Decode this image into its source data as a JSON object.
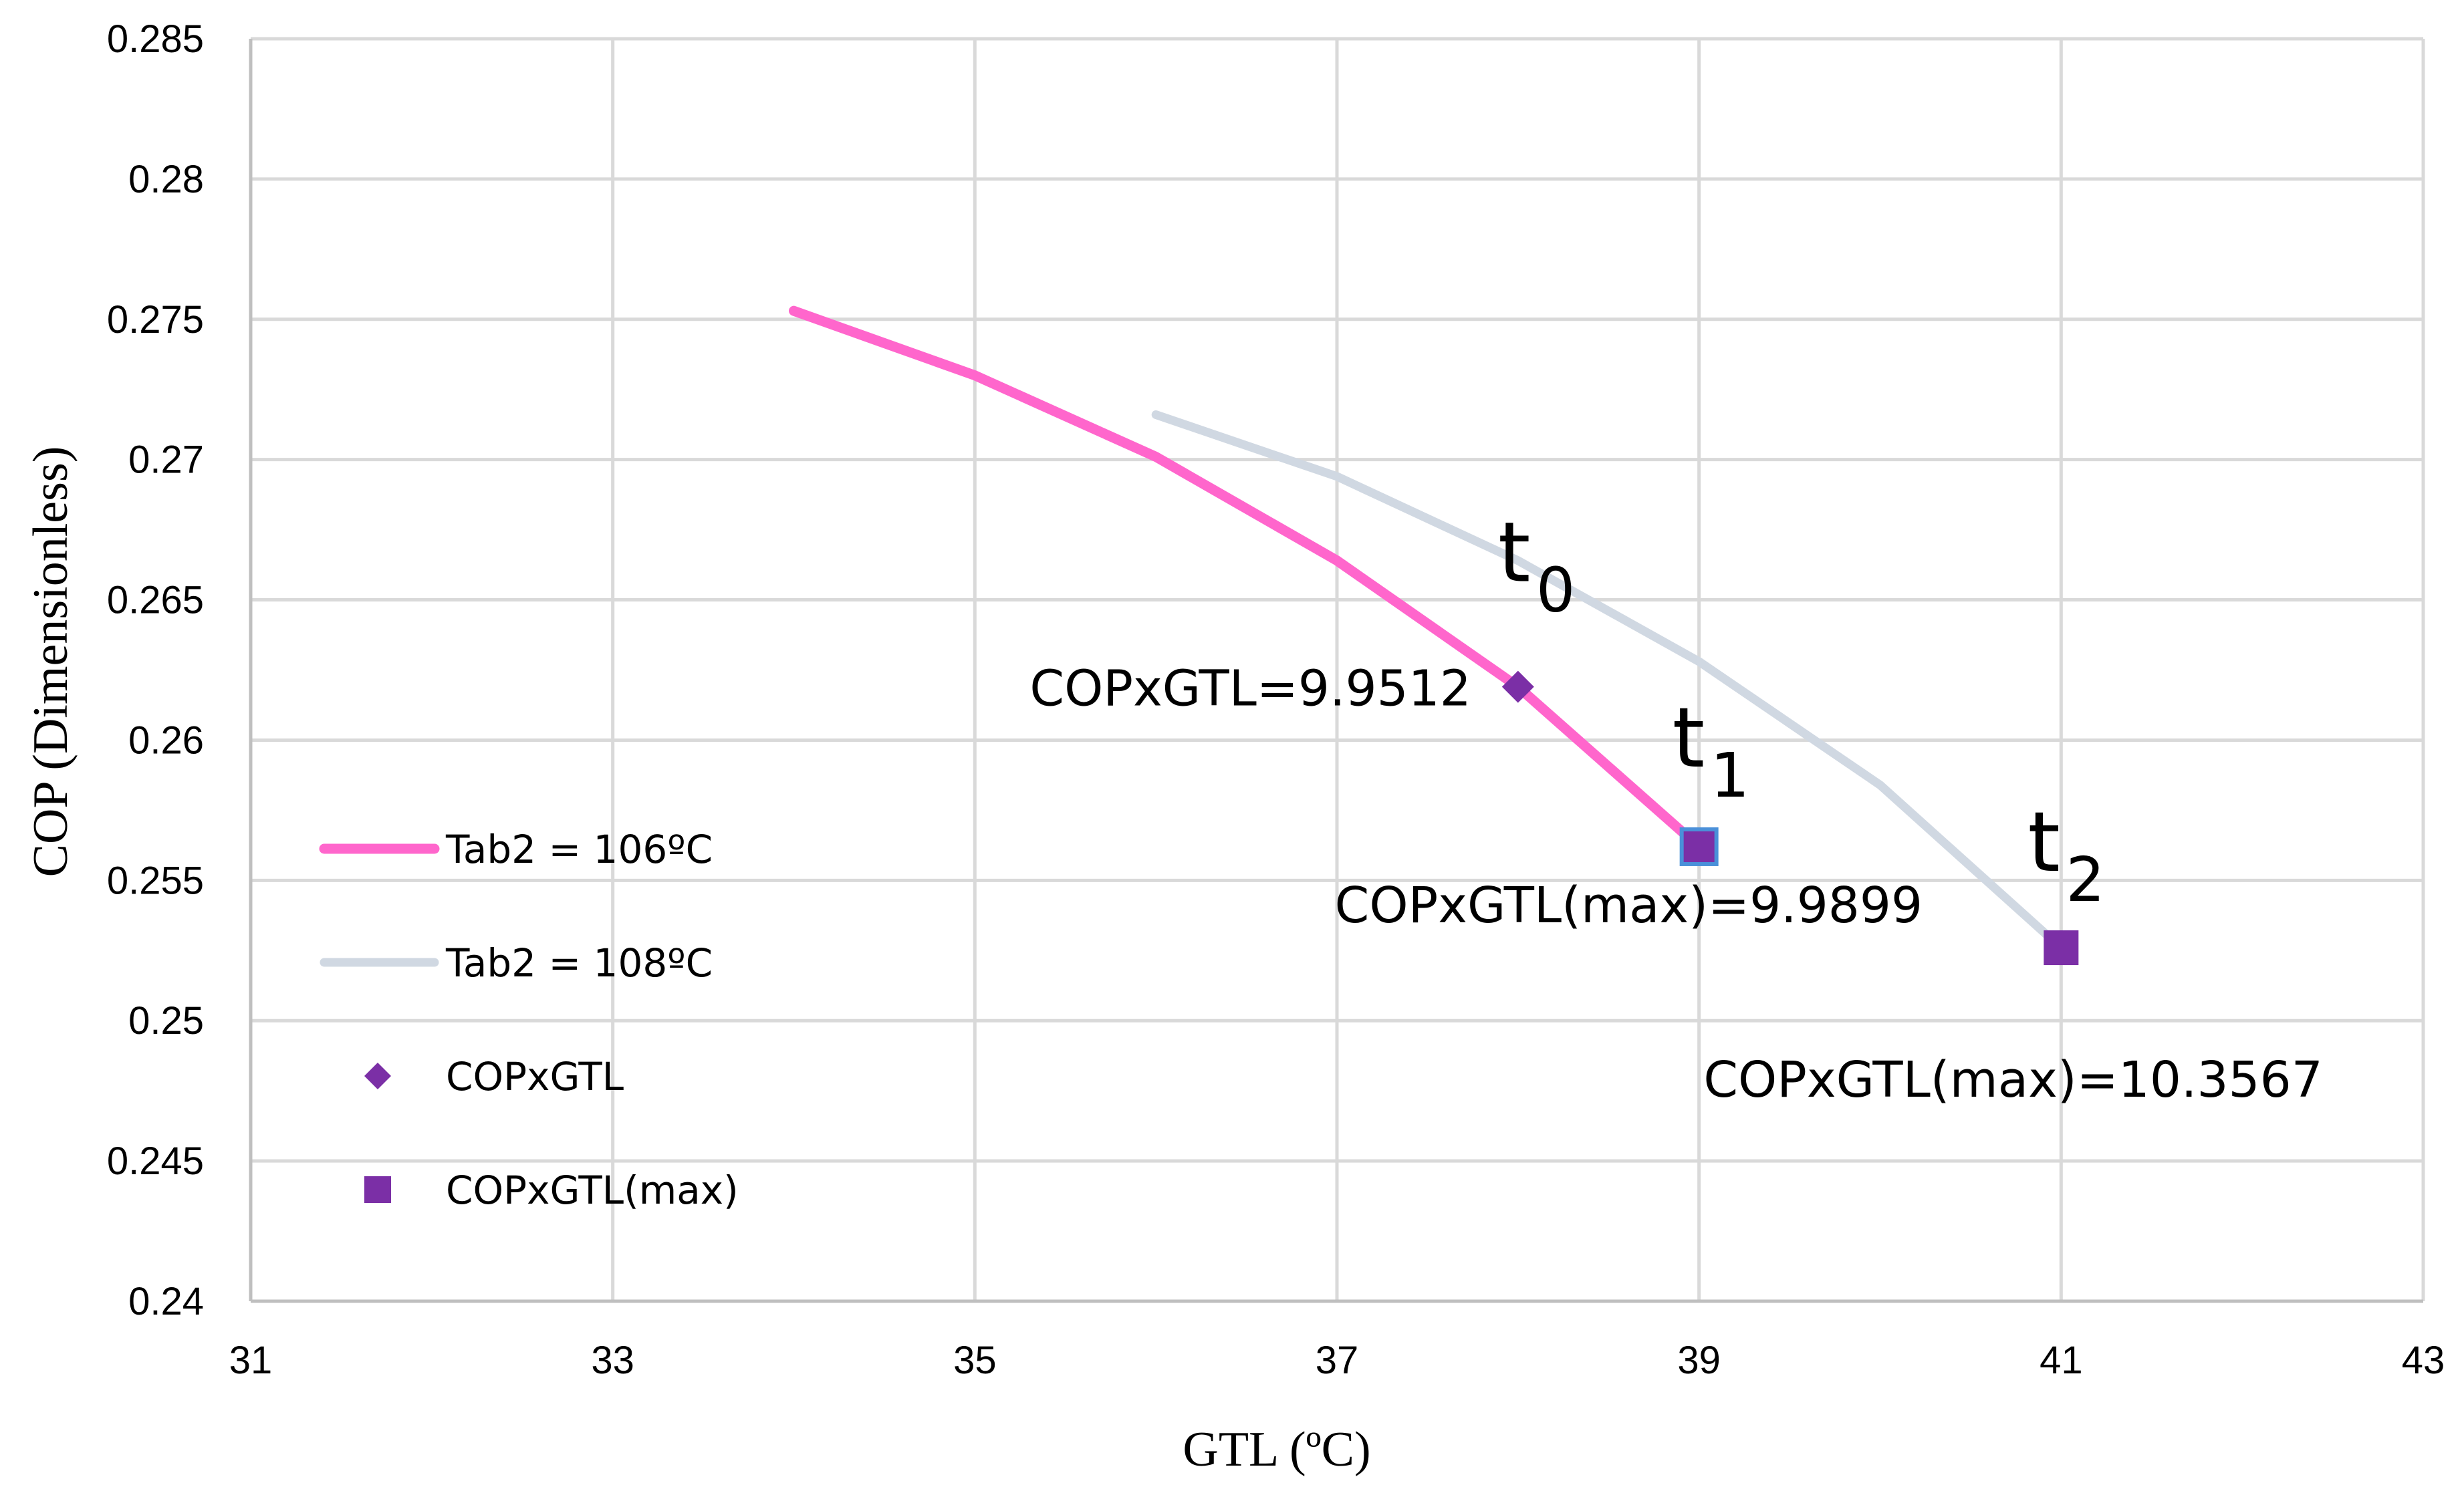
{
  "chart_data": {
    "type": "line",
    "xlabel": "GTL (ºC)",
    "ylabel": "COP (Dimensionless)",
    "xlim": [
      31,
      43
    ],
    "ylim": [
      0.24,
      0.285
    ],
    "x_ticks": [
      "31",
      "33",
      "35",
      "37",
      "39",
      "41",
      "43"
    ],
    "y_ticks": [
      "0.24",
      "0.245",
      "0.25",
      "0.255",
      "0.26",
      "0.265",
      "0.27",
      "0.275",
      "0.28",
      "0.285"
    ],
    "grid": true,
    "legend_position": "left",
    "series": [
      {
        "name": "Tab2 = 106ºC",
        "kind": "line",
        "color": "#ff66cc",
        "x": [
          34,
          35,
          36,
          37,
          38,
          39
        ],
        "y": [
          0.2753,
          0.273,
          0.2701,
          0.2664,
          0.2619,
          0.2562
        ]
      },
      {
        "name": "Tab2 = 108ºC",
        "kind": "line",
        "color": "#d0d8e2",
        "x": [
          36,
          37,
          38,
          39,
          40,
          41
        ],
        "y": [
          0.2716,
          0.2694,
          0.2664,
          0.2628,
          0.2584,
          0.2526
        ]
      },
      {
        "name": "COPxGTL",
        "kind": "marker",
        "marker": "diamond",
        "color": "#7b2fa6",
        "x": [
          38
        ],
        "y": [
          0.2619
        ]
      },
      {
        "name": "COPxGTL(max)",
        "kind": "marker",
        "marker": "square",
        "color": "#7b2fa6",
        "x": [
          39,
          41
        ],
        "y": [
          0.2562,
          0.2526
        ]
      }
    ],
    "annotations": [
      {
        "text": "COPxGTL=9.9512",
        "x": 38,
        "y": 0.2619
      },
      {
        "text": "COPxGTL(max)=9.9899",
        "x": 39,
        "y": 0.2562
      },
      {
        "text": "COPxGTL(max)=10.3567",
        "x": 41,
        "y": 0.2526
      }
    ],
    "point_labels": [
      {
        "text": "t",
        "sub": "0",
        "x": 38,
        "y": 0.2619
      },
      {
        "text": "t",
        "sub": "1",
        "x": 39,
        "y": 0.2562
      },
      {
        "text": "t",
        "sub": "2",
        "x": 41,
        "y": 0.2526
      }
    ]
  }
}
